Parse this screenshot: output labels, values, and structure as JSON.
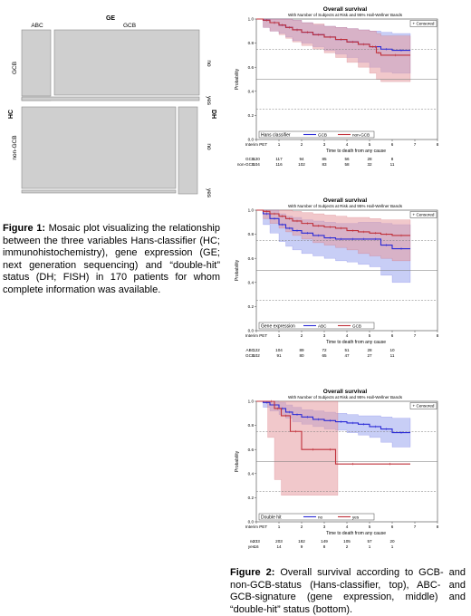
{
  "mosaic": {
    "top_title": "GE",
    "top_cats": [
      "ABC",
      "GCB"
    ],
    "left_title": "HC",
    "left_cats": [
      "GCB",
      "non-GCB"
    ],
    "right_title": "DH",
    "right_cats": [
      "no",
      "yes",
      "no",
      "yes"
    ]
  },
  "figure1_caption": {
    "label": "Figure 1:",
    "text": " Mosaic plot visualizing the relationship between the three variables Hans-classifier (HC; immunohistochemistry), gene expression (GE; next generation sequencing) and “double-hit” status (DH; FISH) in 170 patients for whom complete information was available."
  },
  "figure2_caption": {
    "label": "Figure 2:",
    "text": " Overall survival according to GCB- and non-GCB-status (Hans-classifier, top), ABC- and GCB-signature (gene expression, middle) and “double-hit” status (bottom)."
  },
  "chart_data": [
    {
      "type": "line",
      "title": "Overall survival",
      "subtitle": "With Number of Subjects at Risk and 95% Hall-Wellner Bands",
      "xlabel": "Time to death from any cause",
      "ylabel": "Probability",
      "censored_label": "+ Censored",
      "legend_title": "Hans classifier",
      "xlim": [
        0,
        8
      ],
      "ylim": [
        0,
        1
      ],
      "x_ticks": [
        "Interim PET",
        "1",
        "2",
        "3",
        "4",
        "5",
        "6",
        "7",
        "8"
      ],
      "y_ticks": [
        "0.0",
        "0.2",
        "0.4",
        "0.6",
        "0.8",
        "1.0"
      ],
      "reference_lines": {
        "solid": [
          0.5
        ],
        "dashed": [
          0.25,
          0.75
        ]
      },
      "series": [
        {
          "name": "GCB",
          "color": "#2b2bd6",
          "x": [
            0,
            0.3,
            0.6,
            1.0,
            1.3,
            1.6,
            2.0,
            2.5,
            3.0,
            3.5,
            4.0,
            4.5,
            5.0,
            5.5,
            6.0,
            6.8
          ],
          "y": [
            1.0,
            0.99,
            0.97,
            0.95,
            0.93,
            0.91,
            0.89,
            0.87,
            0.85,
            0.83,
            0.81,
            0.79,
            0.77,
            0.75,
            0.74,
            0.74
          ],
          "band_lower": [
            1.0,
            0.93,
            0.9,
            0.88,
            0.85,
            0.82,
            0.8,
            0.77,
            0.74,
            0.71,
            0.68,
            0.64,
            0.6,
            0.56,
            0.55,
            0.55
          ],
          "band_upper": [
            1.0,
            1.0,
            1.0,
            1.0,
            1.0,
            0.99,
            0.97,
            0.95,
            0.94,
            0.93,
            0.92,
            0.91,
            0.9,
            0.89,
            0.88,
            0.88
          ],
          "band_color": "#9aa6ef"
        },
        {
          "name": "non-GCB",
          "color": "#c0303a",
          "x": [
            0,
            0.3,
            0.6,
            1.0,
            1.3,
            1.6,
            2.0,
            2.5,
            3.0,
            3.5,
            4.0,
            4.5,
            5.0,
            5.3,
            5.5,
            6.8
          ],
          "y": [
            1.0,
            0.99,
            0.97,
            0.95,
            0.93,
            0.91,
            0.89,
            0.87,
            0.85,
            0.83,
            0.81,
            0.79,
            0.77,
            0.72,
            0.7,
            0.7
          ],
          "band_lower": [
            1.0,
            0.93,
            0.9,
            0.87,
            0.84,
            0.81,
            0.78,
            0.75,
            0.72,
            0.68,
            0.64,
            0.6,
            0.55,
            0.5,
            0.48,
            0.48
          ],
          "band_upper": [
            1.0,
            1.0,
            1.0,
            1.0,
            1.0,
            0.99,
            0.97,
            0.96,
            0.94,
            0.93,
            0.92,
            0.91,
            0.9,
            0.88,
            0.86,
            0.86
          ],
          "band_color": "#e69aa0"
        }
      ],
      "at_risk": {
        "rows": [
          {
            "label": "GCB",
            "values": [
              "120",
              "117",
              "94",
              "85",
              "56",
              "28",
              "8"
            ]
          },
          {
            "label": "non-GCB",
            "values": [
              "104",
              "116",
              "102",
              "83",
              "58",
              "32",
              "11"
            ]
          }
        ],
        "x": [
          0,
          1,
          2,
          3,
          4,
          5,
          6
        ]
      }
    },
    {
      "type": "line",
      "title": "Overall survival",
      "subtitle": "With Number of Subjects at Risk and 95% Hall-Wellner Bands",
      "xlabel": "Time to death from any cause",
      "ylabel": "Probability",
      "censored_label": "+ Censored",
      "legend_title": "Gene expression",
      "xlim": [
        0,
        8
      ],
      "ylim": [
        0,
        1
      ],
      "x_ticks": [
        "Interim PET",
        "1",
        "2",
        "3",
        "4",
        "5",
        "6",
        "7",
        "8"
      ],
      "y_ticks": [
        "0.0",
        "0.2",
        "0.4",
        "0.6",
        "0.8",
        "1.0"
      ],
      "reference_lines": {
        "solid": [
          0.5
        ],
        "dashed": [
          0.25,
          0.75
        ]
      },
      "series": [
        {
          "name": "ABC",
          "color": "#2b2bd6",
          "x": [
            0,
            0.3,
            0.6,
            1.0,
            1.3,
            1.6,
            2.0,
            2.5,
            3.0,
            3.5,
            4.0,
            4.5,
            5.0,
            5.5,
            6.0,
            6.8
          ],
          "y": [
            1.0,
            0.97,
            0.93,
            0.88,
            0.85,
            0.83,
            0.81,
            0.79,
            0.77,
            0.76,
            0.76,
            0.76,
            0.76,
            0.71,
            0.68,
            0.68
          ],
          "band_lower": [
            1.0,
            0.88,
            0.81,
            0.74,
            0.7,
            0.67,
            0.64,
            0.62,
            0.6,
            0.58,
            0.57,
            0.55,
            0.53,
            0.46,
            0.4,
            0.4
          ],
          "band_upper": [
            1.0,
            1.0,
            1.0,
            0.97,
            0.95,
            0.94,
            0.92,
            0.91,
            0.9,
            0.89,
            0.89,
            0.9,
            0.9,
            0.89,
            0.88,
            0.88
          ],
          "band_color": "#9aa6ef"
        },
        {
          "name": "GCB",
          "color": "#c0303a",
          "x": [
            0,
            0.3,
            0.6,
            1.0,
            1.3,
            1.6,
            2.0,
            2.5,
            3.0,
            3.5,
            4.0,
            4.5,
            5.0,
            5.5,
            6.0,
            6.8
          ],
          "y": [
            1.0,
            0.99,
            0.97,
            0.95,
            0.93,
            0.91,
            0.89,
            0.87,
            0.86,
            0.85,
            0.83,
            0.82,
            0.81,
            0.8,
            0.79,
            0.79
          ],
          "band_lower": [
            1.0,
            0.93,
            0.89,
            0.85,
            0.82,
            0.79,
            0.76,
            0.73,
            0.71,
            0.69,
            0.67,
            0.64,
            0.62,
            0.6,
            0.58,
            0.58
          ],
          "band_upper": [
            1.0,
            1.0,
            1.0,
            1.0,
            1.0,
            0.99,
            0.98,
            0.97,
            0.96,
            0.95,
            0.94,
            0.94,
            0.93,
            0.92,
            0.92,
            0.92
          ],
          "band_color": "#e69aa0"
        }
      ],
      "at_risk": {
        "rows": [
          {
            "label": "ABC",
            "values": [
              "122",
              "104",
              "89",
              "72",
              "51",
              "28",
              "10"
            ]
          },
          {
            "label": "GCB",
            "values": [
              "102",
              "91",
              "80",
              "65",
              "47",
              "27",
              "11"
            ]
          }
        ],
        "x": [
          0,
          1,
          2,
          3,
          4,
          5,
          6
        ]
      }
    },
    {
      "type": "line",
      "title": "Overall survival",
      "subtitle": "With Number of Subjects at Risk and 95% Hall-Wellner Bands",
      "xlabel": "Time to death from any cause",
      "ylabel": "Probability",
      "censored_label": "+ Censored",
      "legend_title": "Double hit",
      "xlim": [
        0,
        8
      ],
      "ylim": [
        0,
        1
      ],
      "x_ticks": [
        "Interim PET",
        "1",
        "2",
        "3",
        "4",
        "5",
        "6",
        "7",
        "8"
      ],
      "y_ticks": [
        "0.0",
        "0.2",
        "0.4",
        "0.6",
        "0.8",
        "1.0"
      ],
      "reference_lines": {
        "solid": [
          0.5
        ],
        "dashed": [
          0.25,
          0.75
        ]
      },
      "series": [
        {
          "name": "no",
          "color": "#2b2bd6",
          "x": [
            0,
            0.3,
            0.6,
            1.0,
            1.3,
            1.6,
            2.0,
            2.5,
            3.0,
            3.5,
            4.0,
            4.5,
            5.0,
            5.5,
            6.0,
            6.8
          ],
          "y": [
            1.0,
            0.99,
            0.97,
            0.94,
            0.91,
            0.89,
            0.87,
            0.85,
            0.84,
            0.83,
            0.82,
            0.81,
            0.79,
            0.77,
            0.74,
            0.74
          ],
          "band_lower": [
            1.0,
            0.95,
            0.92,
            0.89,
            0.86,
            0.83,
            0.81,
            0.79,
            0.77,
            0.76,
            0.74,
            0.72,
            0.7,
            0.66,
            0.62,
            0.62
          ],
          "band_upper": [
            1.0,
            1.0,
            1.0,
            0.99,
            0.97,
            0.95,
            0.93,
            0.92,
            0.91,
            0.9,
            0.89,
            0.88,
            0.88,
            0.87,
            0.86,
            0.86
          ],
          "band_color": "#9aa6ef"
        },
        {
          "name": "yes",
          "color": "#c0303a",
          "x": [
            0,
            0.5,
            0.8,
            1.1,
            1.5,
            2.0,
            3.0,
            3.5,
            5.0,
            6.8
          ],
          "y": [
            1.0,
            1.0,
            0.94,
            0.88,
            0.75,
            0.6,
            0.6,
            0.48,
            0.48,
            0.48
          ],
          "band_lower": [
            1.0,
            0.7,
            0.35,
            0.22,
            0.22,
            0.22,
            0.22,
            0.22,
            0.22,
            0.22
          ],
          "band_upper": [
            1.0,
            1.0,
            1.0,
            1.0,
            1.0,
            1.0,
            1.0,
            1.0,
            1.0,
            1.0
          ],
          "band_color": "#e69aa0",
          "band_end": 3.6
        }
      ],
      "at_risk": {
        "rows": [
          {
            "label": "no",
            "values": [
              "233",
              "203",
              "182",
              "149",
              "105",
              "57",
              "20"
            ]
          },
          {
            "label": "yes",
            "values": [
              "16",
              "14",
              "9",
              "8",
              "2",
              "1",
              "1"
            ]
          }
        ],
        "x": [
          0,
          1,
          2,
          3,
          4,
          5,
          6
        ]
      }
    }
  ]
}
